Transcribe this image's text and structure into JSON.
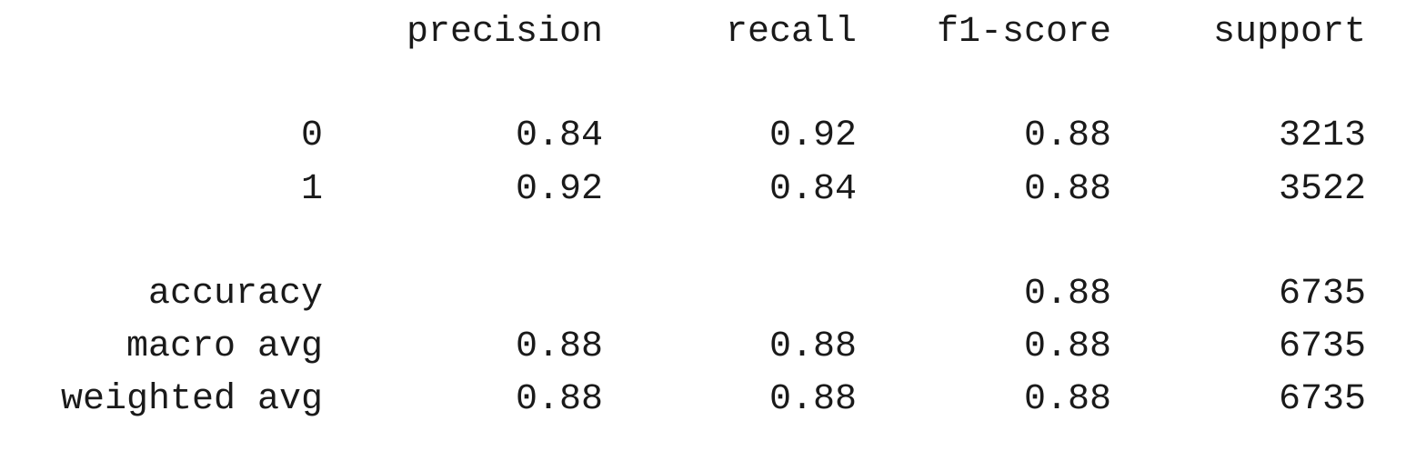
{
  "report": {
    "headers": [
      "precision",
      "recall",
      "f1-score",
      "support"
    ],
    "rows": [
      {
        "label": "0",
        "precision": "0.84",
        "recall": "0.92",
        "f1": "0.88",
        "support": "3213"
      },
      {
        "label": "1",
        "precision": "0.92",
        "recall": "0.84",
        "f1": "0.88",
        "support": "3522"
      },
      {
        "label": "accuracy",
        "precision": "",
        "recall": "",
        "f1": "0.88",
        "support": "6735"
      },
      {
        "label": "macro avg",
        "precision": "0.88",
        "recall": "0.88",
        "f1": "0.88",
        "support": "6735"
      },
      {
        "label": "weighted avg",
        "precision": "0.88",
        "recall": "0.88",
        "f1": "0.88",
        "support": "6735"
      }
    ]
  }
}
